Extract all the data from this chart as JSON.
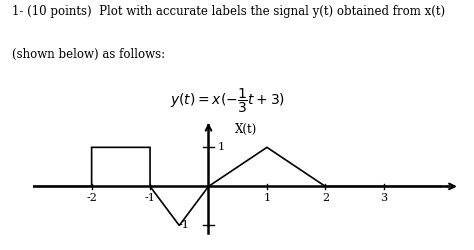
{
  "line1": "1- (10 points)  Plot with accurate labels the signal y(t) obtained from x(t)",
  "line2": "(shown below) as follows:",
  "formula": "$y(t) = x(-\\dfrac{1}{3}t + 3)$",
  "signal_label": "X(t)",
  "xt_points": [
    -4,
    -2,
    -2,
    -1,
    -1,
    -0.5,
    0,
    1,
    2,
    4
  ],
  "yt_points": [
    0,
    0,
    1,
    1,
    0,
    -1,
    0,
    1,
    0,
    0
  ],
  "x_tick_vals": [
    -2,
    -1,
    1,
    2,
    3
  ],
  "x_tick_labels": [
    "-2",
    "-1",
    "1",
    "2",
    "3"
  ],
  "y_pos_tick": 1,
  "y_neg_tick": -1,
  "xlim": [
    -3.0,
    4.3
  ],
  "ylim": [
    -1.5,
    1.7
  ],
  "bg_color": "#ffffff",
  "line_color": "#000000",
  "text_fontsize": 8.5,
  "formula_fontsize": 10,
  "label_fontsize": 8.0
}
